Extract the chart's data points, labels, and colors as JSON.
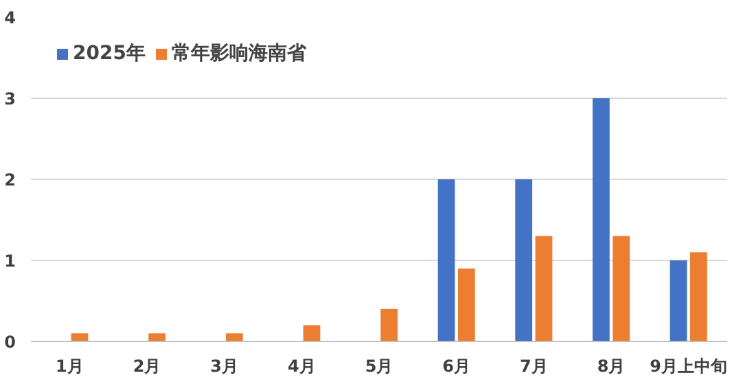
{
  "chart_data": {
    "type": "bar",
    "categories": [
      "1月",
      "2月",
      "3月",
      "4月",
      "5月",
      "6月",
      "7月",
      "8月",
      "9月上中旬"
    ],
    "series": [
      {
        "name": "2025年",
        "color": "#4472c4",
        "values": [
          0,
          0,
          0,
          0,
          0,
          2,
          2,
          3,
          1
        ]
      },
      {
        "name": "常年影响海南省",
        "color": "#ed7d31",
        "values": [
          0.1,
          0.1,
          0.1,
          0.2,
          0.4,
          0.9,
          1.3,
          1.3,
          1.1
        ]
      }
    ],
    "ylim": [
      0,
      4
    ],
    "yticks": [
      0,
      1,
      2,
      3,
      4
    ],
    "grid": "y",
    "legend": "top left"
  }
}
